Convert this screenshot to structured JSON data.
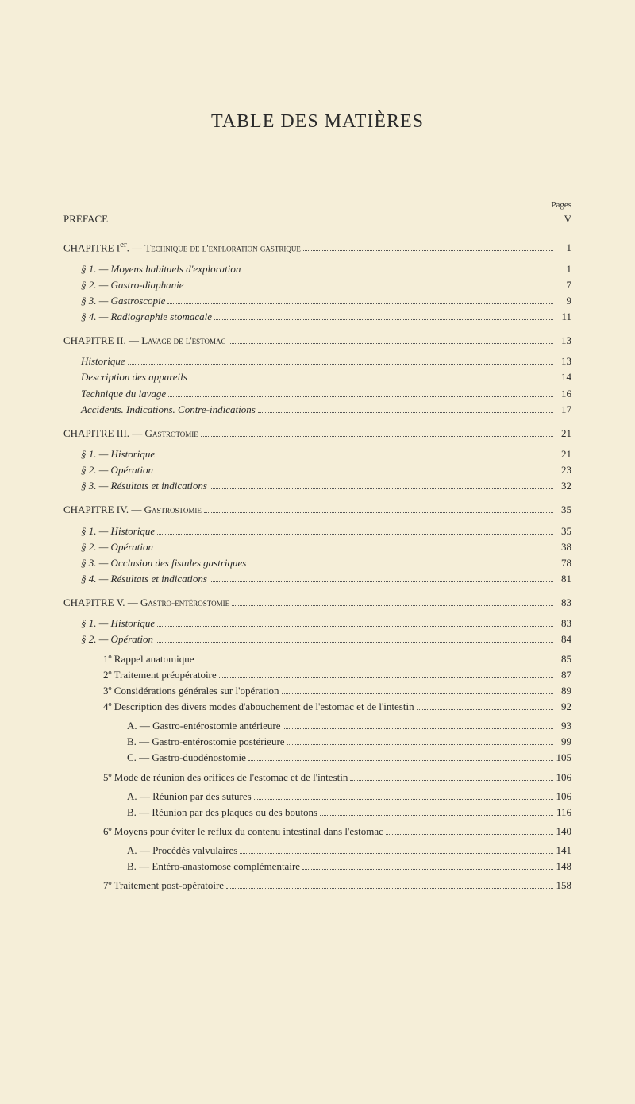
{
  "title": "TABLE DES MATIÈRES",
  "pages_label": "Pages",
  "preface": {
    "label": "PRÉFACE",
    "page": "V"
  },
  "ch1": {
    "heading_a": "CHAPITRE I",
    "heading_sup": "er",
    "heading_b": ". — ",
    "heading_sc": "Technique de l'exploration gastrique",
    "page": "1",
    "s1": {
      "label": "§ 1. — Moyens habituels d'exploration",
      "page": "1"
    },
    "s2": {
      "label": "§ 2. — Gastro-diaphanie",
      "page": "7"
    },
    "s3": {
      "label": "§ 3. — Gastroscopie",
      "page": "9"
    },
    "s4": {
      "label": "§ 4. — Radiographie stomacale",
      "page": "11"
    }
  },
  "ch2": {
    "heading_a": "CHAPITRE II. — ",
    "heading_sc": "Lavage de l'estomac",
    "page": "13",
    "a": {
      "label": "Historique",
      "page": "13"
    },
    "b": {
      "label": "Description des appareils",
      "page": "14"
    },
    "c": {
      "label": "Technique du lavage",
      "page": "16"
    },
    "d": {
      "label": "Accidents. Indications. Contre-indications",
      "page": "17"
    }
  },
  "ch3": {
    "heading_a": "CHAPITRE III. — ",
    "heading_sc": "Gastrotomie",
    "page": "21",
    "s1": {
      "label": "§ 1. — Historique",
      "page": "21"
    },
    "s2": {
      "label": "§ 2. — Opération",
      "page": "23"
    },
    "s3": {
      "label": "§ 3. — Résultats et indications",
      "page": "32"
    }
  },
  "ch4": {
    "heading_a": "CHAPITRE IV. — ",
    "heading_sc": "Gastrostomie",
    "page": "35",
    "s1": {
      "label": "§ 1. — Historique",
      "page": "35"
    },
    "s2": {
      "label": "§ 2. — Opération",
      "page": "38"
    },
    "s3": {
      "label": "§ 3. — Occlusion des fistules gastriques",
      "page": "78"
    },
    "s4": {
      "label": "§ 4. — Résultats et indications",
      "page": "81"
    }
  },
  "ch5": {
    "heading_a": "CHAPITRE V. — ",
    "heading_sc": "Gastro-entérostomie",
    "page": "83",
    "s1": {
      "label": "§ 1. — Historique",
      "page": "83"
    },
    "s2": {
      "label": "§ 2. — Opération",
      "page": "84"
    },
    "i1": {
      "label": "1º Rappel anatomique",
      "page": "85"
    },
    "i2": {
      "label": "2º Traitement préopératoire",
      "page": "87"
    },
    "i3": {
      "label": "3º Considérations générales sur l'opération",
      "page": "89"
    },
    "i4": {
      "label": "4º Description des divers modes d'abouchement de l'estomac et de l'intestin",
      "page": "92"
    },
    "i4a": {
      "label": "A. — Gastro-entérostomie antérieure",
      "page": "93"
    },
    "i4b": {
      "label": "B. — Gastro-entérostomie postérieure",
      "page": "99"
    },
    "i4c": {
      "label": "C. — Gastro-duodénostomie",
      "page": "105"
    },
    "i5": {
      "label": "5º Mode de réunion des orifices de l'estomac et de l'intestin",
      "page": "106"
    },
    "i5a": {
      "label": "A. — Réunion par des sutures",
      "page": "106"
    },
    "i5b": {
      "label": "B. — Réunion par des plaques ou des boutons",
      "page": "116"
    },
    "i6": {
      "label": "6º Moyens pour éviter le reflux du contenu intestinal dans l'estomac",
      "page": "140"
    },
    "i6a": {
      "label": "A. — Procédés valvulaires",
      "page": "141"
    },
    "i6b": {
      "label": "B. — Entéro-anastomose complémentaire",
      "page": "148"
    },
    "i7": {
      "label": "7º Traitement post-opératoire",
      "page": "158"
    }
  }
}
